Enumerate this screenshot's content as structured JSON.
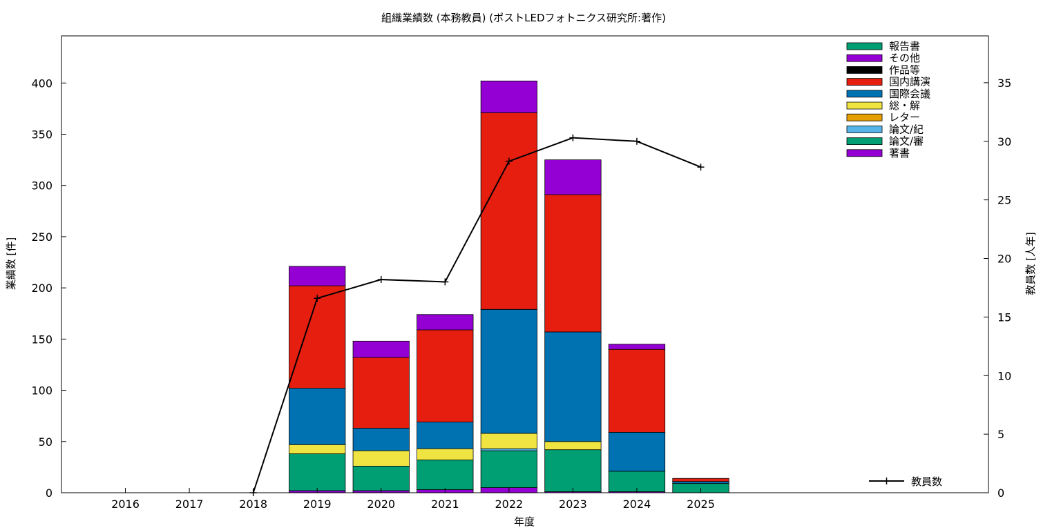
{
  "chart_data": {
    "type": "bar",
    "stacked": true,
    "title": "組織業績数 (本務教員) (ポストLEDフォトニクス研究所:著作)",
    "xlabel": "年度",
    "ylabel": "業績数 [件]",
    "y2label": "教員数 [人年]",
    "categories": [
      "2016",
      "2017",
      "2018",
      "2019",
      "2020",
      "2021",
      "2022",
      "2023",
      "2024",
      "2025"
    ],
    "ylim": [
      0,
      446
    ],
    "y_ticks": [
      0,
      50,
      100,
      150,
      200,
      250,
      300,
      350,
      400
    ],
    "y2lim": [
      0,
      39
    ],
    "y2_ticks": [
      0,
      5,
      10,
      15,
      20,
      25,
      30,
      35
    ],
    "legend_position": "top-right",
    "series": [
      {
        "name": "著書",
        "color": "#9400d3",
        "values": [
          0,
          0,
          0,
          2,
          2,
          3,
          5,
          1,
          1,
          0
        ]
      },
      {
        "name": "論文/審",
        "color": "#009e73",
        "values": [
          0,
          0,
          0,
          36,
          24,
          29,
          36,
          41,
          20,
          9
        ]
      },
      {
        "name": "論文/紀",
        "color": "#56b4e9",
        "values": [
          0,
          0,
          0,
          0,
          0,
          0,
          2,
          0,
          0,
          0
        ]
      },
      {
        "name": "レター",
        "color": "#e69f00",
        "values": [
          0,
          0,
          0,
          0,
          0,
          0,
          0,
          0,
          0,
          0
        ]
      },
      {
        "name": "総・解",
        "color": "#f0e442",
        "values": [
          0,
          0,
          0,
          9,
          15,
          11,
          15,
          8,
          0,
          0
        ]
      },
      {
        "name": "国際会議",
        "color": "#0072b2",
        "values": [
          0,
          0,
          0,
          55,
          22,
          26,
          121,
          107,
          38,
          2
        ]
      },
      {
        "name": "国内講演",
        "color": "#e51e10",
        "values": [
          0,
          0,
          0,
          100,
          69,
          90,
          192,
          134,
          81,
          3
        ]
      },
      {
        "name": "作品等",
        "color": "#000000",
        "values": [
          0,
          0,
          0,
          0,
          0,
          0,
          0,
          0,
          0,
          0
        ]
      },
      {
        "name": "その他",
        "color": "#9400d3",
        "values": [
          0,
          0,
          0,
          19,
          16,
          15,
          31,
          34,
          5,
          0
        ]
      },
      {
        "name": "報告書",
        "color": "#009e73",
        "values": [
          0,
          0,
          0,
          0,
          0,
          0,
          0,
          0,
          0,
          0
        ]
      }
    ],
    "line_series": {
      "name": "教員数",
      "axis": "y2",
      "color": "#000000",
      "x": [
        "2018",
        "2019",
        "2020",
        "2021",
        "2022",
        "2023",
        "2024",
        "2025"
      ],
      "values": [
        0,
        16.6,
        18.2,
        18.0,
        28.3,
        30.3,
        30.0,
        27.8
      ]
    },
    "separator_color": "#000000"
  }
}
